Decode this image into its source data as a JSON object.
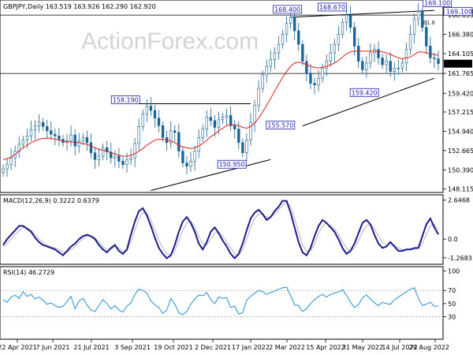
{
  "chart_data": [
    {
      "type": "candlestick",
      "panel": "price",
      "header": "GBPJPY,Daily  163.519 163.926 162.290 162.920",
      "symbol": "GBPJPY",
      "timeframe": "Daily",
      "ohlc_last": {
        "open": 163.519,
        "high": 163.926,
        "low": 162.29,
        "close": 162.92
      },
      "y_ticks": [
        169.1,
        168.655,
        166.38,
        164.105,
        161.765,
        159.42,
        157.215,
        154.94,
        152.665,
        150.39,
        148.115
      ],
      "ylim": [
        147.9,
        170.25
      ],
      "current_price_label": "162.920",
      "x_tick_labels": [
        "22 Apr 2021",
        "7 Jun 2021",
        "21 Jul 2021",
        "3 Sep 2021",
        "19 Oct 2021",
        "2 Dec 2021",
        "17 Jan 2022",
        "2 Mar 2022",
        "15 Apr 2022",
        "31 May 2022",
        "14 Jul 2022",
        "29 Aug 2022"
      ],
      "annotations": [
        {
          "text": "158.190",
          "value": 158.19
        },
        {
          "text": "150.950",
          "value": 150.95
        },
        {
          "text": "168.400",
          "value": 168.4
        },
        {
          "text": "168.670",
          "value": 168.67
        },
        {
          "text": "169.100",
          "value": 169.1
        },
        {
          "text": "155.570",
          "value": 155.57
        },
        {
          "text": "159.420",
          "value": 159.42
        },
        {
          "text": "61.8",
          "value": 61.8
        }
      ],
      "series": [
        {
          "name": "price",
          "values": [
            150.5,
            151.0,
            151.8,
            152.6,
            153.4,
            153.9,
            154.4,
            155.1,
            155.6,
            156.0,
            155.5,
            155.0,
            154.6,
            154.4,
            154.0,
            153.6,
            153.8,
            154.5,
            153.2,
            153.8,
            154.2,
            153.6,
            152.4,
            151.6,
            152.0,
            153.0,
            152.5,
            151.8,
            152.0,
            151.4,
            151.0,
            151.6,
            151.8,
            153.5,
            155.5,
            157.0,
            157.9,
            157.4,
            156.5,
            155.6,
            154.2,
            153.6,
            155.0,
            154.8,
            152.6,
            151.2,
            150.8,
            151.4,
            152.6,
            154.2,
            155.2,
            156.6,
            156.2,
            155.4,
            156.3,
            156.6,
            156.8,
            155.6,
            155.2,
            153.6,
            152.4,
            153.9,
            156.0,
            158.0,
            160.0,
            161.6,
            162.6,
            163.4,
            164.2,
            165.2,
            166.4,
            167.7,
            168.4,
            166.8,
            165.2,
            163.2,
            161.8,
            160.6,
            160.4,
            161.2,
            162.4,
            163.2,
            164.2,
            165.2,
            166.4,
            167.8,
            168.67,
            167.2,
            165.0,
            163.2,
            162.2,
            163.0,
            164.2,
            164.6,
            163.6,
            162.8,
            163.2,
            162.0,
            162.4,
            162.4,
            163.0,
            164.6,
            166.4,
            168.2,
            169.1,
            167.2,
            165.0,
            163.6,
            163.5,
            162.92
          ]
        },
        {
          "name": "moving_average",
          "values": [
            151.6,
            151.7,
            151.9,
            152.2,
            152.6,
            153.0,
            153.3,
            153.6,
            153.8,
            154.0,
            154.1,
            154.1,
            154.1,
            154.0,
            153.9,
            153.8,
            153.7,
            153.7,
            153.6,
            153.6,
            153.5,
            153.4,
            153.2,
            153.0,
            152.8,
            152.7,
            152.6,
            152.4,
            152.3,
            152.1,
            152.0,
            152.0,
            152.1,
            152.3,
            152.6,
            152.9,
            153.3,
            153.6,
            153.9,
            154.0,
            154.0,
            153.9,
            153.8,
            153.6,
            153.3,
            153.1,
            153.0,
            152.9,
            153.0,
            153.2,
            153.5,
            153.9,
            154.3,
            154.6,
            155.0,
            155.3,
            155.6,
            155.7,
            155.7,
            155.6,
            155.4,
            155.3,
            155.5,
            155.9,
            156.5,
            157.2,
            158.0,
            158.8,
            159.7,
            160.5,
            161.3,
            162.0,
            162.6,
            163.0,
            163.1,
            163.0,
            162.8,
            162.6,
            162.5,
            162.4,
            162.5,
            162.6,
            162.8,
            163.0,
            163.3,
            163.7,
            164.1,
            164.3,
            164.4,
            164.4,
            164.4,
            164.4,
            164.4,
            164.4,
            164.4,
            164.3,
            164.2,
            164.0,
            163.8,
            163.6,
            163.5,
            163.6,
            163.7,
            164.0,
            164.3,
            164.3,
            164.2,
            164.1,
            164.0,
            163.9
          ]
        }
      ]
    },
    {
      "type": "line",
      "panel": "indicator",
      "header": "MACD(12,26,9) 0.3222 0.6379",
      "title": "MACD(12,26,9)",
      "main_value": 0.3222,
      "signal_value": 0.6379,
      "y_ticks": [
        2.6468,
        0.0,
        -1.2683
      ],
      "ylim": [
        -1.6,
        2.9
      ],
      "series": [
        {
          "name": "macd",
          "values": [
            -0.4,
            0.0,
            0.3,
            0.6,
            0.9,
            0.9,
            0.7,
            0.5,
            0.1,
            -0.2,
            -0.4,
            -0.5,
            -0.6,
            -0.7,
            -0.9,
            -1.1,
            -0.8,
            -0.5,
            -0.3,
            0.0,
            0.2,
            0.3,
            0.2,
            0.0,
            -0.4,
            -0.7,
            -0.9,
            -0.6,
            -0.4,
            -0.8,
            -1.0,
            -0.7,
            0.3,
            1.2,
            1.9,
            2.1,
            1.6,
            0.9,
            0.1,
            -0.6,
            -1.0,
            -1.3,
            -1.1,
            -0.4,
            0.5,
            1.2,
            1.5,
            1.1,
            0.5,
            -0.3,
            -0.7,
            -0.2,
            0.5,
            0.8,
            0.4,
            -0.1,
            -0.5,
            -1.0,
            -1.3,
            -1.0,
            -0.3,
            0.6,
            1.4,
            1.8,
            2.0,
            1.7,
            1.3,
            1.5,
            1.9,
            2.2,
            2.6,
            2.6,
            1.8,
            0.8,
            -0.2,
            -0.9,
            -1.1,
            -0.6,
            0.2,
            0.9,
            1.3,
            1.1,
            0.8,
            0.5,
            0.0,
            -0.6,
            -1.0,
            -0.8,
            -0.3,
            0.4,
            1.1,
            1.3,
            1.0,
            0.3,
            -0.3,
            -0.6,
            -0.5,
            -0.2,
            -0.5,
            -0.8,
            -0.8,
            -0.7,
            -0.7,
            -0.6,
            -0.6,
            0.2,
            1.0,
            1.4,
            0.8,
            0.32
          ]
        },
        {
          "name": "signal",
          "values": [
            -0.5,
            -0.3,
            0.0,
            0.3,
            0.6,
            0.8,
            0.8,
            0.6,
            0.3,
            0.0,
            -0.2,
            -0.4,
            -0.5,
            -0.6,
            -0.7,
            -0.9,
            -0.9,
            -0.7,
            -0.5,
            -0.2,
            0.0,
            0.2,
            0.2,
            0.1,
            -0.2,
            -0.5,
            -0.7,
            -0.7,
            -0.5,
            -0.6,
            -0.8,
            -0.8,
            -0.2,
            0.6,
            1.4,
            1.8,
            1.8,
            1.3,
            0.6,
            -0.1,
            -0.6,
            -1.0,
            -1.1,
            -0.8,
            -0.1,
            0.6,
            1.1,
            1.2,
            0.8,
            0.2,
            -0.3,
            -0.4,
            0.0,
            0.4,
            0.5,
            0.2,
            -0.2,
            -0.6,
            -1.0,
            -1.1,
            -0.7,
            0.0,
            0.8,
            1.4,
            1.7,
            1.7,
            1.5,
            1.5,
            1.7,
            2.0,
            2.3,
            2.5,
            2.2,
            1.4,
            0.5,
            -0.4,
            -0.8,
            -0.8,
            -0.3,
            0.4,
            0.9,
            1.1,
            0.9,
            0.7,
            0.3,
            -0.2,
            -0.6,
            -0.8,
            -0.6,
            -0.1,
            0.5,
            0.9,
            1.0,
            0.7,
            0.2,
            -0.2,
            -0.4,
            -0.3,
            -0.4,
            -0.6,
            -0.7,
            -0.7,
            -0.7,
            -0.7,
            -0.6,
            -0.3,
            0.3,
            0.9,
            1.0,
            0.64
          ]
        }
      ]
    },
    {
      "type": "line",
      "panel": "indicator",
      "header": "RSI(14) 46.2729",
      "title": "RSI(14)",
      "value": 46.2729,
      "y_ticks": [
        100,
        70,
        50,
        30
      ],
      "ylim": [
        -2,
        104
      ],
      "series": [
        {
          "name": "rsi",
          "values": [
            56,
            52,
            60,
            63,
            58,
            68,
            61,
            64,
            57,
            60,
            55,
            49,
            51,
            47,
            44,
            46,
            53,
            61,
            42,
            54,
            58,
            48,
            40,
            38,
            47,
            56,
            50,
            42,
            47,
            40,
            37,
            46,
            51,
            64,
            72,
            70,
            66,
            54,
            48,
            44,
            35,
            40,
            58,
            49,
            36,
            33,
            38,
            49,
            57,
            63,
            62,
            67,
            56,
            50,
            60,
            58,
            59,
            44,
            46,
            34,
            36,
            55,
            61,
            66,
            70,
            68,
            64,
            67,
            69,
            72,
            74,
            75,
            62,
            48,
            47,
            38,
            42,
            50,
            56,
            61,
            64,
            60,
            64,
            66,
            68,
            71,
            63,
            52,
            44,
            48,
            59,
            63,
            57,
            51,
            47,
            52,
            50,
            49,
            56,
            60,
            64,
            68,
            72,
            74,
            58,
            47,
            49,
            52,
            46,
            46.27
          ]
        }
      ]
    }
  ]
}
